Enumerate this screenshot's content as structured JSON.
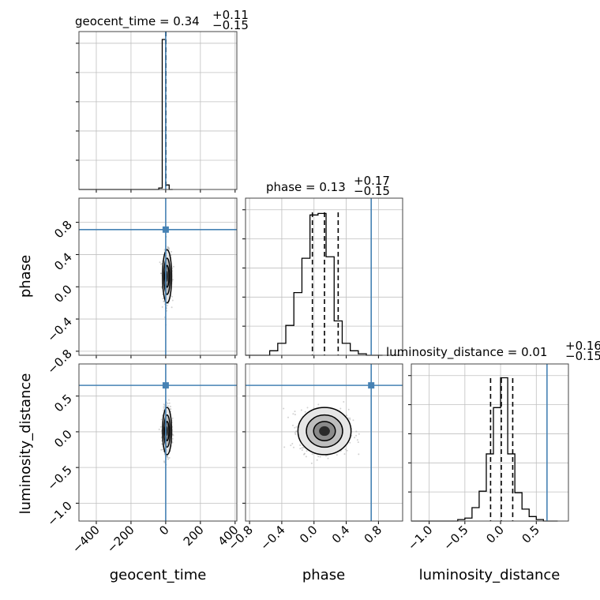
{
  "chart_data": {
    "type": "corner",
    "parameters": [
      "geocent_time",
      "phase",
      "luminosity_distance"
    ],
    "axis_labels": [
      "geocent_time",
      "phase",
      "luminosity_distance"
    ],
    "titles": [
      {
        "name": "geocent_time",
        "median": "0.34",
        "plus": "+0.11",
        "minus": "−0.15"
      },
      {
        "name": "phase",
        "median": "0.13",
        "plus": "+0.17",
        "minus": "−0.15"
      },
      {
        "name": "luminosity_distance",
        "median": "0.01",
        "plus": "+0.16",
        "minus": "−0.15"
      }
    ],
    "ranges": {
      "geocent_time": [
        -500,
        410
      ],
      "phase": [
        -0.85,
        1.1
      ],
      "luminosity_distance": [
        -1.25,
        0.95
      ]
    },
    "ticks": {
      "geocent_time": [
        -400,
        -200,
        0,
        200,
        400
      ],
      "phase": [
        -0.8,
        -0.4,
        0.0,
        0.4,
        0.8
      ],
      "luminosity_distance": [
        -1.0,
        -0.5,
        0.0,
        0.5
      ]
    },
    "tick_labels": {
      "geocent_time": [
        "−400",
        "−200",
        "0",
        "200",
        "400"
      ],
      "phase": [
        "−0.8",
        "−0.4",
        "0.0",
        "0.4",
        "0.8"
      ],
      "luminosity_distance": [
        "−1.0",
        "−0.5",
        "0.0",
        "0.5"
      ]
    },
    "truths": {
      "geocent_time": 0,
      "phase": 0.71,
      "luminosity_distance": 0.65
    },
    "quantiles": {
      "geocent_time": [
        0.19,
        0.34,
        0.45
      ],
      "phase": [
        -0.02,
        0.13,
        0.3
      ],
      "luminosity_distance": [
        -0.14,
        0.01,
        0.17
      ]
    },
    "histograms": {
      "geocent_time": {
        "edges": [
          -40,
          -20,
          0,
          20,
          40
        ],
        "counts": [
          0.01,
          1.0,
          0.03,
          0.0
        ]
      },
      "phase": {
        "edges": [
          -0.55,
          -0.45,
          -0.35,
          -0.25,
          -0.15,
          -0.05,
          0.05,
          0.15,
          0.25,
          0.35,
          0.45,
          0.55,
          0.65,
          0.75,
          0.85
        ],
        "counts": [
          0.03,
          0.08,
          0.2,
          0.42,
          0.65,
          0.94,
          0.95,
          0.66,
          0.23,
          0.08,
          0.03,
          0.01,
          0.0,
          0.0
        ]
      },
      "luminosity_distance": {
        "edges": [
          -0.6,
          -0.5,
          -0.4,
          -0.3,
          -0.2,
          -0.1,
          0.0,
          0.1,
          0.2,
          0.3,
          0.4,
          0.5,
          0.6,
          0.7,
          0.8
        ],
        "counts": [
          0.01,
          0.02,
          0.09,
          0.2,
          0.45,
          0.76,
          0.96,
          0.45,
          0.19,
          0.08,
          0.03,
          0.01,
          0.0,
          0.0
        ]
      }
    },
    "samples": {
      "geocent_time": {
        "mean": 8,
        "sd": 12
      },
      "phase": {
        "mean": 0.13,
        "sd": 0.15
      },
      "luminosity_distance": {
        "mean": 0.01,
        "sd": 0.15
      }
    },
    "grid": true,
    "colors": {
      "truth": "#4682b4",
      "hist": "#000000",
      "grid": "#c0c0c0",
      "points": "#9a9a9a"
    }
  }
}
